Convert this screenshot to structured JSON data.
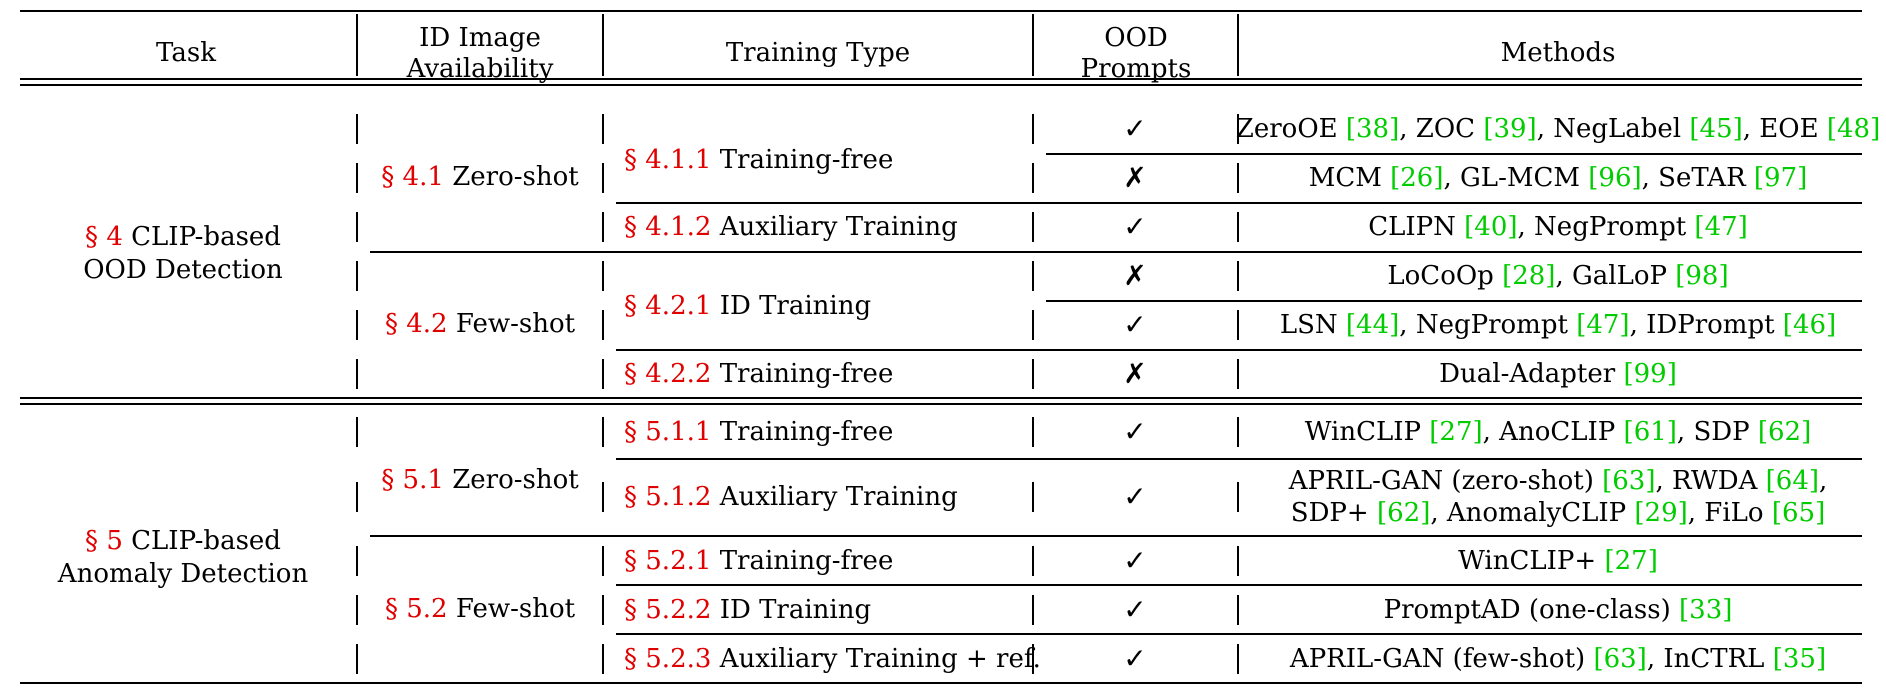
{
  "table": {
    "headers": {
      "task": "Task",
      "id_image": [
        "ID Image",
        "Availability"
      ],
      "training_type": "Training Type",
      "ood_prompts": [
        "OOD",
        "Prompts"
      ],
      "methods": "Methods"
    },
    "sections": [
      {
        "sec": "§ 4",
        "lines": [
          "CLIP-based",
          "OOD Detection"
        ]
      },
      {
        "sec": "§ 5",
        "lines": [
          "CLIP-based",
          "Anomaly Detection"
        ]
      }
    ],
    "availability": [
      {
        "sec": "§ 4.1",
        "label": "Zero-shot"
      },
      {
        "sec": "§ 4.2",
        "label": "Few-shot"
      },
      {
        "sec": "§ 5.1",
        "label": "Zero-shot"
      },
      {
        "sec": "§ 5.2",
        "label": "Few-shot"
      }
    ],
    "training": [
      {
        "sec": "§ 4.1.1",
        "label": "Training-free"
      },
      {
        "sec": "§ 4.1.2",
        "label": "Auxiliary Training"
      },
      {
        "sec": "§ 4.2.1",
        "label": "ID Training"
      },
      {
        "sec": "§ 4.2.2",
        "label": "Training-free"
      },
      {
        "sec": "§ 5.1.1",
        "label": "Training-free"
      },
      {
        "sec": "§ 5.1.2",
        "label": "Auxiliary Training"
      },
      {
        "sec": "§ 5.2.1",
        "label": "Training-free"
      },
      {
        "sec": "§ 5.2.2",
        "label": "ID Training"
      },
      {
        "sec": "§ 5.2.3",
        "label": "Auxiliary Training + ref."
      }
    ],
    "prompts": [
      "✓",
      "✗",
      "✓",
      "✗",
      "✓",
      "✗",
      "✓",
      "✓",
      "✓",
      "✓",
      "✓"
    ],
    "methods": [
      [
        {
          "t": "ZeroOE "
        },
        {
          "r": "[38]"
        },
        {
          "t": ", ZOC "
        },
        {
          "r": "[39]"
        },
        {
          "t": ", NegLabel "
        },
        {
          "r": "[45]"
        },
        {
          "t": ", EOE "
        },
        {
          "r": "[48]"
        }
      ],
      [
        {
          "t": "MCM "
        },
        {
          "r": "[26]"
        },
        {
          "t": ", GL-MCM "
        },
        {
          "r": "[96]"
        },
        {
          "t": ", SeTAR "
        },
        {
          "r": "[97]"
        }
      ],
      [
        {
          "t": "CLIPN "
        },
        {
          "r": "[40]"
        },
        {
          "t": ", NegPrompt "
        },
        {
          "r": "[47]"
        }
      ],
      [
        {
          "t": "LoCoOp "
        },
        {
          "r": "[28]"
        },
        {
          "t": ", GalLoP "
        },
        {
          "r": "[98]"
        }
      ],
      [
        {
          "t": "LSN "
        },
        {
          "r": "[44]"
        },
        {
          "t": ", NegPrompt "
        },
        {
          "r": "[47]"
        },
        {
          "t": ", IDPrompt "
        },
        {
          "r": "[46]"
        }
      ],
      [
        {
          "t": "Dual-Adapter "
        },
        {
          "r": "[99]"
        }
      ],
      [
        {
          "t": "WinCLIP "
        },
        {
          "r": "[27]"
        },
        {
          "t": ", AnoCLIP "
        },
        {
          "r": "[61]"
        },
        {
          "t": ", SDP "
        },
        {
          "r": "[62]"
        }
      ],
      [
        {
          "t": "APRIL-GAN (zero-shot) "
        },
        {
          "r": "[63]"
        },
        {
          "t": ", RWDA "
        },
        {
          "r": "[64]"
        },
        {
          "t": ","
        }
      ],
      [
        {
          "t": "SDP+ "
        },
        {
          "r": "[62]"
        },
        {
          "t": ", AnomalyCLIP "
        },
        {
          "r": "[29]"
        },
        {
          "t": ", FiLo "
        },
        {
          "r": "[65]"
        }
      ],
      [
        {
          "t": "WinCLIP+ "
        },
        {
          "r": "[27]"
        }
      ],
      [
        {
          "t": "PromptAD (one-class) "
        },
        {
          "r": "[33]"
        }
      ],
      [
        {
          "t": "APRIL-GAN (few-shot) "
        },
        {
          "r": "[63]"
        },
        {
          "t": ", InCTRL "
        },
        {
          "r": "[35]"
        }
      ]
    ]
  }
}
